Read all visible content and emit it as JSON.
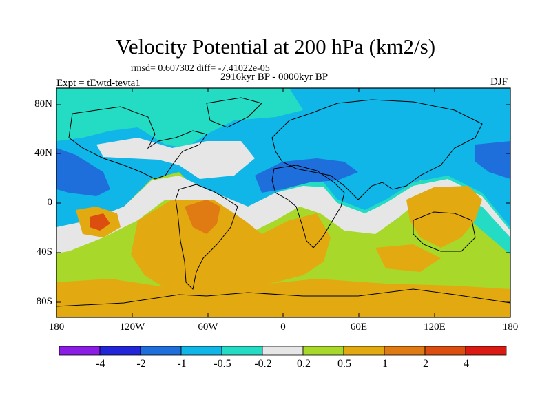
{
  "figure": {
    "title": "Velocity Potential at 200 hPa (km2/s)",
    "stats": "rmsd= 0.607302 diff= -7.41022e-05",
    "left_subtitle": "Expt = tEwtd-tevta1",
    "center_subtitle": "2916kyr BP - 0000kyr BP",
    "right_subtitle": "DJF"
  },
  "axes": {
    "lat_labels": [
      "80N",
      "40N",
      "0",
      "40S",
      "80S"
    ],
    "lon_labels": [
      "180",
      "120W",
      "60W",
      "0",
      "60E",
      "120E",
      "180"
    ]
  },
  "colorbar": {
    "labels": [
      "-4",
      "-2",
      "-1",
      "-0.5",
      "-0.2",
      "0.2",
      "0.5",
      "1",
      "2",
      "4"
    ],
    "colors": [
      "#8a1ce6",
      "#2226d8",
      "#1e6fdc",
      "#10b6e8",
      "#24dcc4",
      "#e6e6e6",
      "#a8d82a",
      "#e2aa10",
      "#e07a12",
      "#dc4e10",
      "#dc1a14"
    ]
  },
  "map_colors": {
    "ocean_bg": "#a8d82a",
    "band_lightblue": "#10b6e8",
    "band_teal": "#24dcc4",
    "band_blue": "#1e6fdc",
    "band_white": "#e6e6e6",
    "band_orange": "#e2aa10",
    "band_darkorange": "#e07a12",
    "band_red": "#dc4e10"
  }
}
